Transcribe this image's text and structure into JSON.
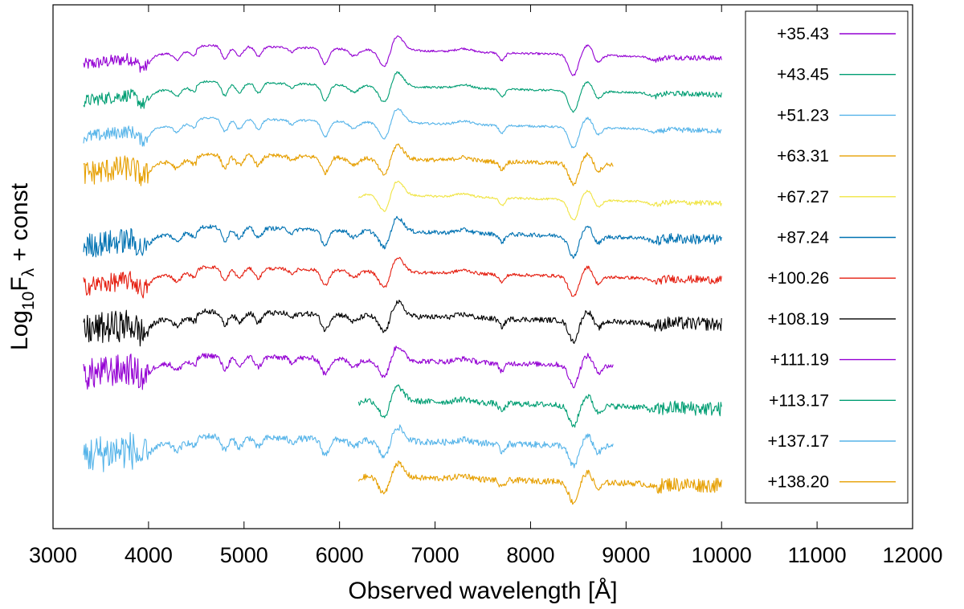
{
  "chart_data": {
    "type": "line",
    "title": "",
    "xlabel": "Observed wavelength [Å]",
    "ylabel": {
      "prefix": "Log",
      "subscript": "10",
      "main": "F",
      "main_subscript": "λ",
      "suffix": " + const"
    },
    "xlim": [
      3000,
      12000
    ],
    "xticks": [
      3000,
      4000,
      5000,
      6000,
      7000,
      8000,
      9000,
      10000,
      11000,
      12000
    ],
    "ylim": [
      0,
      13
    ],
    "yticks_labeled": false,
    "grid": false,
    "legend_position": "top-right",
    "series": [
      {
        "name": "+35.43",
        "color": "#9400d3",
        "x_start": 3320,
        "x_end": 10000,
        "offset": 12.0,
        "noise": 0.8
      },
      {
        "name": "+43.45",
        "color": "#009e73",
        "x_start": 3320,
        "x_end": 10000,
        "offset": 11.1,
        "noise": 0.8
      },
      {
        "name": "+51.23",
        "color": "#56b4e9",
        "x_start": 3320,
        "x_end": 10000,
        "offset": 10.2,
        "noise": 0.8
      },
      {
        "name": "+63.31",
        "color": "#e69f00",
        "x_start": 3320,
        "x_end": 8870,
        "offset": 9.3,
        "noise": 1.6
      },
      {
        "name": "+67.27",
        "color": "#f0e442",
        "x_start": 6200,
        "x_end": 10000,
        "offset": 8.4,
        "noise": 0.8
      },
      {
        "name": "+87.24",
        "color": "#0072b2",
        "x_start": 3320,
        "x_end": 10000,
        "offset": 7.5,
        "noise": 1.6
      },
      {
        "name": "+100.26",
        "color": "#e51e10",
        "x_start": 3320,
        "x_end": 10000,
        "offset": 6.5,
        "noise": 1.2
      },
      {
        "name": "+108.19",
        "color": "#000000",
        "x_start": 3320,
        "x_end": 10000,
        "offset": 5.4,
        "noise": 2.0
      },
      {
        "name": "+111.19",
        "color": "#9400d3",
        "x_start": 3320,
        "x_end": 8870,
        "offset": 4.3,
        "noise": 2.0
      },
      {
        "name": "+113.17",
        "color": "#009e73",
        "x_start": 6200,
        "x_end": 10000,
        "offset": 3.3,
        "noise": 2.2
      },
      {
        "name": "+137.17",
        "color": "#56b4e9",
        "x_start": 3320,
        "x_end": 8870,
        "offset": 2.3,
        "noise": 2.4
      },
      {
        "name": "+138.20",
        "color": "#e69f00",
        "x_start": 6200,
        "x_end": 10000,
        "offset": 1.4,
        "noise": 2.2
      }
    ]
  }
}
